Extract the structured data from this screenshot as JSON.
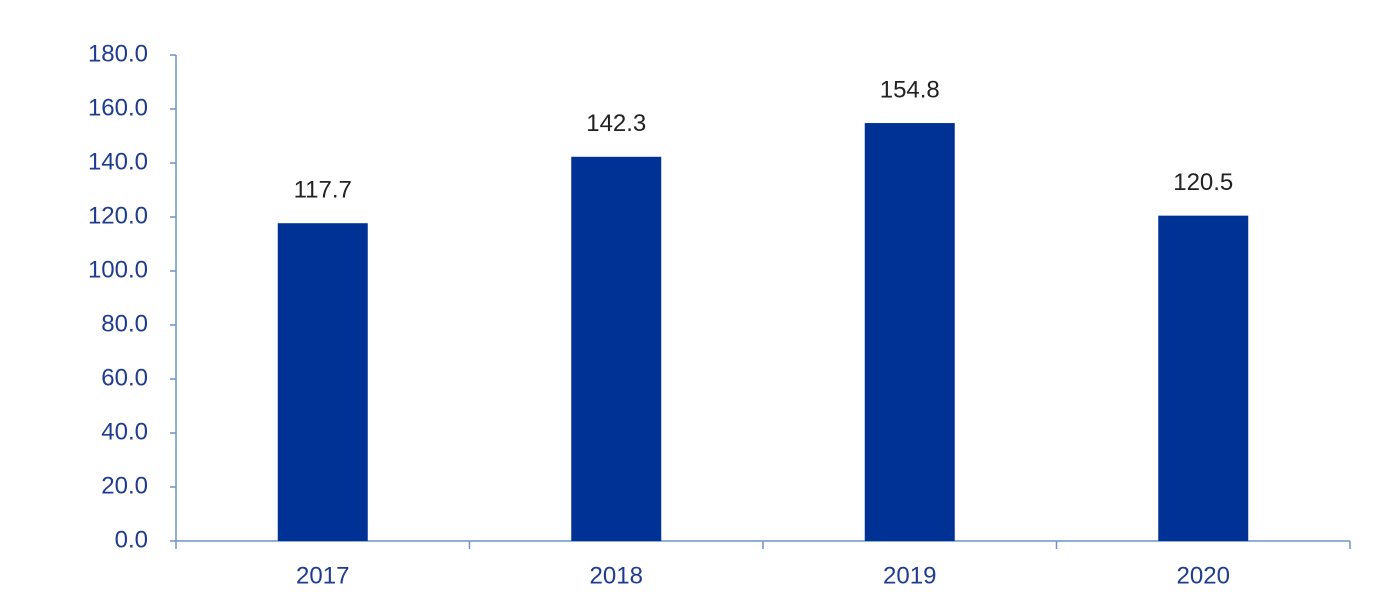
{
  "chart_data": {
    "type": "bar",
    "categories": [
      "2017",
      "2018",
      "2019",
      "2020"
    ],
    "values": [
      117.7,
      142.3,
      154.8,
      120.5
    ],
    "color": "#003296",
    "ylim": [
      0,
      180
    ],
    "yticks": [
      {
        "value": 0,
        "label": "0.0"
      },
      {
        "value": 20,
        "label": "20.0"
      },
      {
        "value": 40,
        "label": "40.0"
      },
      {
        "value": 60,
        "label": "60.0"
      },
      {
        "value": 80,
        "label": "80.0"
      },
      {
        "value": 100,
        "label": "100.0"
      },
      {
        "value": 120,
        "label": "120.0"
      },
      {
        "value": 140,
        "label": "140.0"
      },
      {
        "value": 160,
        "label": "160.0"
      },
      {
        "value": 180,
        "label": "180.0"
      }
    ],
    "grid": false
  }
}
